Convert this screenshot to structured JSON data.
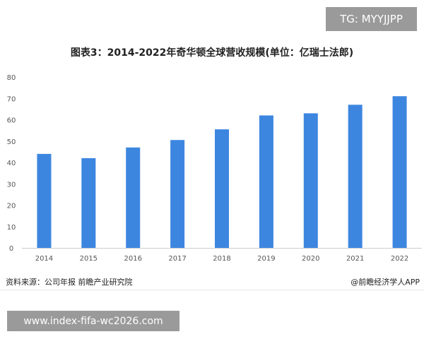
{
  "overlay": {
    "top_tag": "TG: MYYJJPP",
    "bottom_url": "www.index-fifa-wc2026.com"
  },
  "source_note": "资料来源：公司年报 前瞻产业研究院",
  "credit": "@前瞻经济学人APP",
  "colors": {
    "bar": "#3d86e0",
    "axis": "#cccccc",
    "tick_text": "#555555"
  },
  "chart_data": {
    "type": "bar",
    "title": "图表3：2014-2022年奇华顿全球营收规模(单位：亿瑞士法郎)",
    "categories": [
      "2014",
      "2015",
      "2016",
      "2017",
      "2018",
      "2019",
      "2020",
      "2021",
      "2022"
    ],
    "values": [
      44.0,
      42.0,
      47.0,
      50.5,
      55.5,
      62.0,
      63.0,
      67.0,
      71.0
    ],
    "y_ticks": [
      0,
      10,
      20,
      30,
      40,
      50,
      60,
      70,
      80
    ],
    "ylim": [
      0,
      80
    ],
    "grid": false,
    "xlabel": "",
    "ylabel": ""
  }
}
